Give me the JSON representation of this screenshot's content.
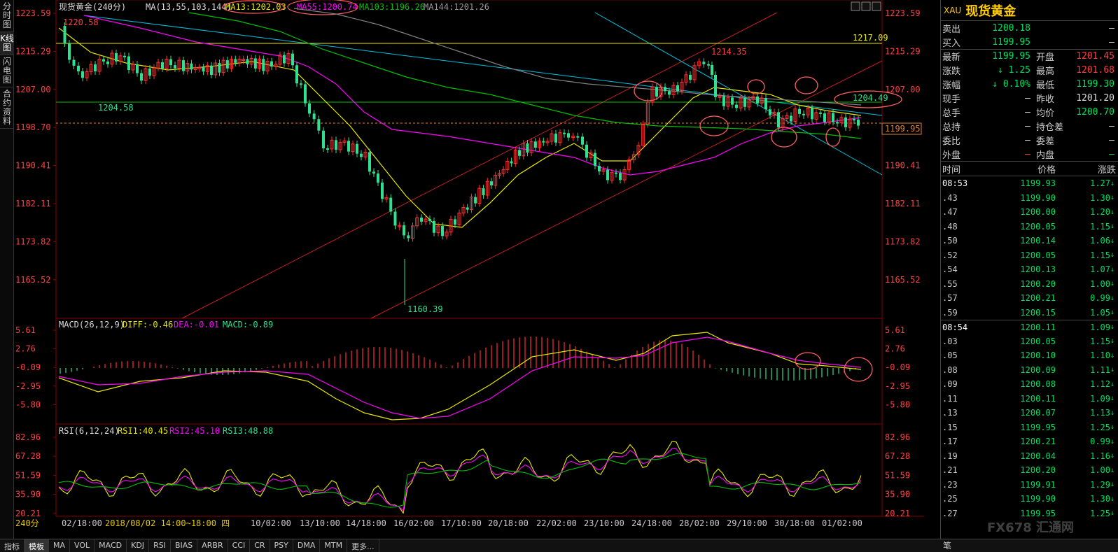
{
  "left_tabs": [
    "分时图",
    "K线图",
    "闪电图",
    "合约资料"
  ],
  "main": {
    "title": "现货黄金(240分)",
    "ma_label": "MA(13,55,103,144)",
    "ma13": "MA13:1202.03",
    "ma55": "MA55:1200.74",
    "ma103": "MA103:1196.26",
    "ma144": "MA144:1201.26",
    "y_ticks": [
      "1223.59",
      "1215.29",
      "1207.00",
      "1198.70",
      "1190.41",
      "1182.11",
      "1173.82",
      "1165.52"
    ],
    "hi_label": "1220.58",
    "support_label": "1204.58",
    "resist_label": "1217.09",
    "peak_label": "1214.35",
    "low_label": "1160.39",
    "right_label": "1204.49",
    "current_price": "1199.95"
  },
  "macd": {
    "label": "MACD(26,12,9)",
    "diff": "DIFF:-0.46",
    "dea": "DEA:-0.01",
    "macd": "MACD:-0.89",
    "ticks": [
      "5.61",
      "2.76",
      "-0.09",
      "-2.95",
      "-5.80"
    ]
  },
  "rsi": {
    "label": "RSI(6,12,24)",
    "rsi1": "RSI1:40.45",
    "rsi2": "RSI2:45.10",
    "rsi3": "RSI3:48.88",
    "ticks": [
      "82.96",
      "67.28",
      "51.59",
      "35.90",
      "20.21"
    ]
  },
  "x_axis": {
    "period": "240分",
    "labels": [
      "02/18:00",
      "2018/08/02 14:00~18:00 四",
      "10/02:00",
      "13/10:00",
      "14/18:00",
      "16/02:00",
      "17/10:00",
      "20/18:00",
      "22/02:00",
      "23/10:00",
      "24/18:00",
      "28/02:00",
      "29/10:00",
      "30/18:00",
      "01/02:00"
    ]
  },
  "quote": {
    "code": "XAU",
    "name": "现货黄金",
    "rows": [
      {
        "l1": "卖出",
        "v1": "1200.18",
        "c1": "green",
        "l2": "",
        "v2": "—",
        "c2": "white"
      },
      {
        "l1": "买入",
        "v1": "1199.95",
        "c1": "green",
        "l2": "",
        "v2": "—",
        "c2": "white"
      },
      {
        "l1": "最新",
        "v1": "1199.95",
        "c1": "green",
        "l2": "开盘",
        "v2": "1201.45",
        "c2": "red"
      },
      {
        "l1": "涨跌",
        "v1": "↓ 1.25",
        "c1": "green",
        "l2": "最高",
        "v2": "1201.68",
        "c2": "red"
      },
      {
        "l1": "涨幅",
        "v1": "↓ 0.10%",
        "c1": "green",
        "l2": "最低",
        "v2": "1199.30",
        "c2": "green"
      },
      {
        "l1": "现手",
        "v1": "—",
        "c1": "white",
        "l2": "昨收",
        "v2": "1201.20",
        "c2": "white"
      },
      {
        "l1": "总手",
        "v1": "—",
        "c1": "white",
        "l2": "均价",
        "v2": "1200.70",
        "c2": "green"
      },
      {
        "l1": "总持",
        "v1": "—",
        "c1": "white",
        "l2": "持仓差",
        "v2": "—",
        "c2": "white"
      },
      {
        "l1": "委比",
        "v1": "—",
        "c1": "white",
        "l2": "委差",
        "v2": "—",
        "c2": "white"
      },
      {
        "l1": "外盘",
        "v1": "—",
        "c1": "red",
        "l2": "内盘",
        "v2": "—",
        "c2": "green"
      }
    ]
  },
  "ticks_header": {
    "time": "时间",
    "price": "价格",
    "change": "涨跌"
  },
  "ticks": [
    {
      "t": "08:53",
      "p": "1199.93",
      "c": "1.27",
      "full": true
    },
    {
      "t": ".43",
      "p": "1199.90",
      "c": "1.30"
    },
    {
      "t": ".47",
      "p": "1200.00",
      "c": "1.20"
    },
    {
      "t": ".48",
      "p": "1200.05",
      "c": "1.15"
    },
    {
      "t": ".50",
      "p": "1200.14",
      "c": "1.06"
    },
    {
      "t": ".52",
      "p": "1200.05",
      "c": "1.15"
    },
    {
      "t": ".54",
      "p": "1200.13",
      "c": "1.07"
    },
    {
      "t": ".55",
      "p": "1200.20",
      "c": "1.00"
    },
    {
      "t": ".57",
      "p": "1200.21",
      "c": "0.99"
    },
    {
      "t": ".59",
      "p": "1200.15",
      "c": "1.05"
    },
    {
      "t": "08:54",
      "p": "1200.11",
      "c": "1.09",
      "full": true,
      "group": true
    },
    {
      "t": ".03",
      "p": "1200.05",
      "c": "1.15"
    },
    {
      "t": ".05",
      "p": "1200.10",
      "c": "1.10"
    },
    {
      "t": ".08",
      "p": "1200.09",
      "c": "1.11"
    },
    {
      "t": ".09",
      "p": "1200.08",
      "c": "1.12"
    },
    {
      "t": ".11",
      "p": "1200.11",
      "c": "1.09"
    },
    {
      "t": ".13",
      "p": "1200.07",
      "c": "1.13"
    },
    {
      "t": ".15",
      "p": "1199.95",
      "c": "1.25"
    },
    {
      "t": ".17",
      "p": "1200.21",
      "c": "0.99"
    },
    {
      "t": ".19",
      "p": "1200.04",
      "c": "1.16"
    },
    {
      "t": ".21",
      "p": "1200.20",
      "c": "1.00"
    },
    {
      "t": ".23",
      "p": "1199.91",
      "c": "1.29"
    },
    {
      "t": ".25",
      "p": "1199.90",
      "c": "1.30"
    },
    {
      "t": ".27",
      "p": "1199.95",
      "c": "1.25"
    }
  ],
  "bottom_tabs": [
    "指标",
    "模板",
    "MA",
    "VOL",
    "MACD",
    "KDJ",
    "RSI",
    "BIAS",
    "ARBR",
    "CCI",
    "CR",
    "PSY",
    "DMA",
    "MTM",
    "更多..."
  ],
  "bottom_right": "笔",
  "watermark": "FX678 汇通网",
  "colors": {
    "up": "#ff3030",
    "down": "#30e090",
    "ma13": "#e8e800",
    "ma55": "#ff00ff",
    "ma103": "#00c000",
    "ma144": "#808080"
  }
}
